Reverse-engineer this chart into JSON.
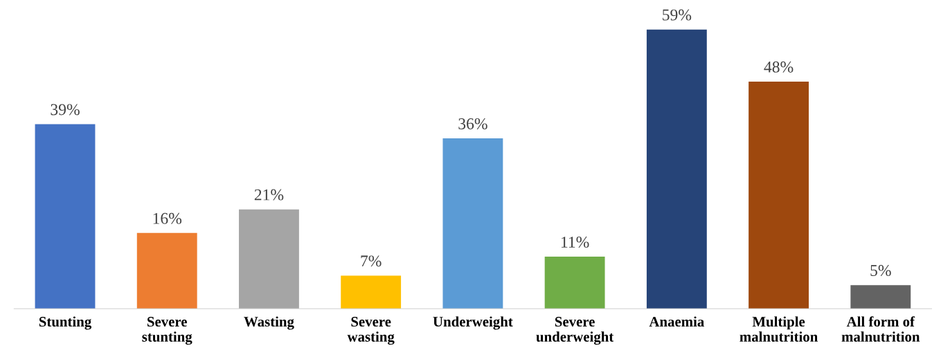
{
  "chart_data": {
    "type": "bar",
    "categories": [
      "Stunting",
      "Severe\nstunting",
      "Wasting",
      "Severe\nwasting",
      "Underweight",
      "Severe\nunderweight",
      "Anaemia",
      "Multiple\nmalnutrition",
      "All form of\nmalnutrition"
    ],
    "values": [
      39,
      16,
      21,
      7,
      36,
      11,
      59,
      48,
      5
    ],
    "colors": [
      "#4472c4",
      "#ed7d31",
      "#a5a5a5",
      "#ffc000",
      "#5b9bd5",
      "#70ad47",
      "#264478",
      "#9e480e",
      "#636363"
    ],
    "value_labels": [
      "39%",
      "16%",
      "21%",
      "7%",
      "36%",
      "11%",
      "59%",
      "48%",
      "5%"
    ],
    "grid": false,
    "legend": false
  }
}
